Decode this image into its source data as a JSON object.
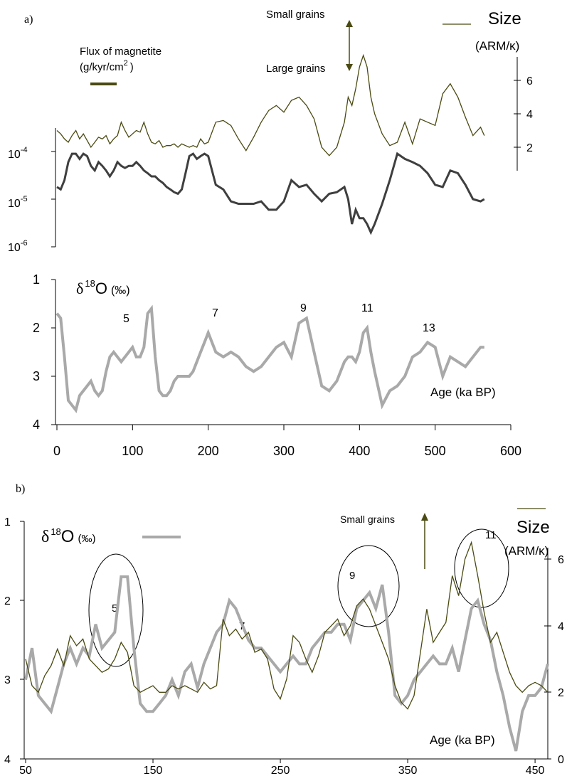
{
  "colors": {
    "size_line": "#4a4a12",
    "flux_line": "#3f3f3f",
    "d18o_line": "#a9a9a9",
    "arrow": "#4a4a12",
    "axis": "#000000"
  },
  "panel_a": {
    "label": "a)",
    "small_grains": "Small grains",
    "large_grains": "Large grains",
    "size_title": "Size",
    "size_unit": "(ARM/κ)",
    "flux_label_1": "Flux of magnetite",
    "flux_label_2": "(g/kyr/cm",
    "flux_label_sup": "2",
    "flux_label_close": ")",
    "d18o_delta": "δ",
    "d18o_sup": "18",
    "d18o_O": "O",
    "d18o_unit": "(‰)",
    "age_label": "Age (ka BP)",
    "stage_labels": [
      "5",
      "7",
      "9",
      "11",
      "13"
    ],
    "flux_tick_base": [
      "10",
      "10",
      "10"
    ],
    "flux_tick_exp": [
      "-4",
      "-5",
      "-6"
    ],
    "size_ticks": [
      "6",
      "4",
      "2"
    ],
    "d18o_ticks": [
      "1",
      "2",
      "3",
      "4"
    ],
    "x_ticks": [
      "0",
      "100",
      "200",
      "300",
      "400",
      "500",
      "600"
    ]
  },
  "panel_b": {
    "label": "b)",
    "small_grains": "Small grains",
    "size_title": "Size",
    "size_unit": "(ARM/κ)",
    "d18o_delta": "δ",
    "d18o_sup": "18",
    "d18o_O": "O",
    "d18o_unit": "(‰)",
    "age_label": "Age (ka BP)",
    "stage_labels": [
      "5",
      "7",
      "9",
      "11"
    ],
    "d18o_ticks": [
      "1",
      "2",
      "3",
      "4"
    ],
    "size_ticks": [
      "6",
      "4",
      "2",
      "0"
    ],
    "x_ticks": [
      "50",
      "150",
      "250",
      "350",
      "450"
    ]
  },
  "chart_data": [
    {
      "type": "line",
      "panel": "a",
      "xlabel": "Age (ka BP)",
      "xlim": [
        0,
        600
      ],
      "series": [
        {
          "axis": "flux",
          "yscale": "log",
          "ylim": [
            1e-06,
            0.0001
          ],
          "x": [
            0,
            5,
            10,
            15,
            20,
            25,
            30,
            35,
            40,
            45,
            50,
            55,
            60,
            65,
            70,
            75,
            80,
            85,
            90,
            95,
            100,
            105,
            110,
            115,
            120,
            125,
            130,
            135,
            140,
            145,
            150,
            155,
            160,
            165,
            170,
            175,
            180,
            185,
            190,
            195,
            200,
            210,
            220,
            230,
            240,
            250,
            260,
            270,
            280,
            290,
            300,
            310,
            320,
            330,
            340,
            350,
            360,
            370,
            380,
            385,
            390,
            395,
            400,
            405,
            410,
            415,
            420,
            430,
            440,
            450,
            460,
            470,
            480,
            490,
            500,
            510,
            520,
            530,
            540,
            550,
            560,
            565
          ],
          "y": [
            1.8e-05,
            1.6e-05,
            2.5e-05,
            6e-05,
            9e-05,
            9e-05,
            7e-05,
            9e-05,
            8e-05,
            5e-05,
            4e-05,
            6e-05,
            5e-05,
            4e-05,
            3e-05,
            4e-05,
            6e-05,
            5e-05,
            4.5e-05,
            5e-05,
            5e-05,
            6e-05,
            5e-05,
            4e-05,
            3.5e-05,
            3e-05,
            3e-05,
            2.5e-05,
            2.2e-05,
            1.8e-05,
            1.6e-05,
            1.4e-05,
            1.3e-05,
            1.6e-05,
            3.5e-05,
            8e-05,
            9e-05,
            7e-05,
            8e-05,
            9e-05,
            8e-05,
            2e-05,
            1.6e-05,
            9e-06,
            8e-06,
            8e-06,
            8e-06,
            9e-06,
            6e-06,
            6e-06,
            9e-06,
            2.5e-05,
            1.8e-05,
            2e-05,
            1.3e-05,
            9e-06,
            1.3e-05,
            1.4e-05,
            1.8e-05,
            1e-05,
            3e-06,
            6e-06,
            4e-06,
            4e-06,
            3e-06,
            2e-06,
            3e-06,
            8e-06,
            2.5e-05,
            9e-05,
            7e-05,
            6e-05,
            5e-05,
            3.5e-05,
            2e-05,
            1.8e-05,
            4e-05,
            3.5e-05,
            2e-05,
            1e-05,
            9e-06,
            1e-05
          ]
        },
        {
          "axis": "size",
          "ylim": [
            1,
            7
          ],
          "x": [
            0,
            5,
            10,
            15,
            20,
            25,
            30,
            35,
            40,
            45,
            50,
            55,
            60,
            65,
            70,
            75,
            80,
            85,
            90,
            95,
            100,
            105,
            110,
            115,
            120,
            125,
            130,
            135,
            140,
            145,
            150,
            155,
            160,
            165,
            170,
            175,
            180,
            185,
            190,
            195,
            200,
            210,
            220,
            230,
            240,
            250,
            260,
            270,
            280,
            290,
            300,
            310,
            320,
            330,
            340,
            350,
            360,
            370,
            380,
            385,
            390,
            395,
            400,
            405,
            410,
            415,
            420,
            430,
            440,
            450,
            460,
            470,
            480,
            490,
            500,
            510,
            520,
            530,
            540,
            550,
            560,
            565
          ],
          "y": [
            3.0,
            2.8,
            2.5,
            2.3,
            2.7,
            3.0,
            2.5,
            2.8,
            2.4,
            2.0,
            2.3,
            2.6,
            2.5,
            2.7,
            2.2,
            2.5,
            2.7,
            3.5,
            3.0,
            2.6,
            2.8,
            3.0,
            2.9,
            3.5,
            2.8,
            2.3,
            2.2,
            2.4,
            2.0,
            2.1,
            2.1,
            2.2,
            2.0,
            2.2,
            2.1,
            2.0,
            2.1,
            2.0,
            2.5,
            2.2,
            2.3,
            3.5,
            3.6,
            3.3,
            2.5,
            1.8,
            2.6,
            3.5,
            4.2,
            4.5,
            4.1,
            4.8,
            5.0,
            4.5,
            3.7,
            2.0,
            1.5,
            2.0,
            3.5,
            5.0,
            4.5,
            5.5,
            6.8,
            7.5,
            6.8,
            5.0,
            4.0,
            2.8,
            2.1,
            2.3,
            3.5,
            2.2,
            3.7,
            3.5,
            3.3,
            5.2,
            5.8,
            5.0,
            3.8,
            2.7,
            3.2,
            2.7
          ]
        },
        {
          "axis": "d18o",
          "ylim": [
            4,
            1
          ],
          "x": [
            0,
            5,
            10,
            15,
            20,
            25,
            30,
            35,
            40,
            45,
            50,
            55,
            60,
            65,
            70,
            75,
            80,
            85,
            90,
            95,
            100,
            105,
            110,
            115,
            120,
            125,
            130,
            135,
            140,
            145,
            150,
            155,
            160,
            165,
            170,
            175,
            180,
            185,
            190,
            195,
            200,
            210,
            220,
            230,
            240,
            250,
            260,
            270,
            280,
            290,
            300,
            310,
            320,
            330,
            340,
            350,
            360,
            370,
            380,
            385,
            390,
            395,
            400,
            405,
            410,
            415,
            420,
            430,
            440,
            450,
            460,
            470,
            480,
            490,
            500,
            510,
            520,
            530,
            540,
            550,
            560,
            565
          ],
          "y": [
            1.7,
            1.8,
            2.6,
            3.5,
            3.6,
            3.7,
            3.4,
            3.3,
            3.2,
            3.1,
            3.3,
            3.4,
            3.3,
            2.9,
            2.6,
            2.5,
            2.6,
            2.7,
            2.6,
            2.5,
            2.4,
            2.6,
            2.6,
            2.4,
            1.7,
            1.6,
            2.6,
            3.3,
            3.4,
            3.4,
            3.3,
            3.1,
            3.0,
            3.0,
            3.0,
            3.0,
            2.9,
            2.7,
            2.5,
            2.3,
            2.1,
            2.5,
            2.6,
            2.5,
            2.6,
            2.8,
            2.9,
            2.8,
            2.6,
            2.4,
            2.3,
            2.6,
            1.9,
            1.8,
            2.5,
            3.2,
            3.3,
            3.1,
            2.7,
            2.6,
            2.6,
            2.7,
            2.5,
            2.1,
            2.0,
            2.5,
            2.9,
            3.6,
            3.3,
            3.2,
            3.0,
            2.6,
            2.5,
            2.3,
            2.4,
            3.0,
            2.6,
            2.7,
            2.8,
            2.6,
            2.4,
            2.4
          ]
        }
      ]
    },
    {
      "type": "line",
      "panel": "b",
      "xlabel": "Age (ka BP)",
      "xlim": [
        50,
        460
      ],
      "series": [
        {
          "axis": "d18o",
          "ylim": [
            4,
            1
          ],
          "x": [
            50,
            55,
            60,
            65,
            70,
            75,
            80,
            85,
            90,
            95,
            100,
            105,
            110,
            115,
            120,
            125,
            130,
            135,
            140,
            145,
            150,
            155,
            160,
            165,
            170,
            175,
            180,
            185,
            190,
            195,
            200,
            205,
            210,
            215,
            220,
            225,
            230,
            235,
            240,
            245,
            250,
            255,
            260,
            265,
            270,
            275,
            280,
            285,
            290,
            295,
            300,
            305,
            310,
            315,
            320,
            325,
            330,
            335,
            340,
            345,
            350,
            355,
            360,
            365,
            370,
            375,
            380,
            385,
            390,
            395,
            400,
            405,
            410,
            415,
            420,
            425,
            430,
            435,
            440,
            445,
            450,
            455,
            460
          ],
          "y": [
            3.0,
            2.6,
            3.2,
            3.3,
            3.4,
            3.1,
            2.8,
            2.6,
            2.8,
            2.6,
            2.7,
            2.3,
            2.6,
            2.5,
            2.4,
            1.7,
            1.7,
            2.6,
            3.3,
            3.4,
            3.4,
            3.3,
            3.2,
            3.0,
            3.2,
            2.9,
            2.8,
            3.1,
            2.8,
            2.6,
            2.4,
            2.3,
            2.0,
            2.1,
            2.3,
            2.5,
            2.6,
            2.6,
            2.7,
            2.8,
            2.9,
            2.8,
            2.7,
            2.8,
            2.8,
            2.6,
            2.5,
            2.4,
            2.4,
            2.3,
            2.3,
            2.5,
            2.1,
            2.0,
            1.9,
            2.1,
            1.8,
            2.4,
            3.2,
            3.3,
            3.2,
            3.0,
            2.9,
            2.8,
            2.7,
            2.8,
            2.8,
            2.6,
            2.9,
            2.5,
            2.1,
            2.0,
            2.3,
            2.5,
            2.9,
            3.2,
            3.6,
            3.9,
            3.4,
            3.2,
            3.2,
            3.1,
            2.8
          ]
        },
        {
          "axis": "size",
          "ylim": [
            0,
            6.5
          ],
          "x": [
            50,
            55,
            60,
            65,
            70,
            75,
            80,
            85,
            90,
            95,
            100,
            105,
            110,
            115,
            120,
            125,
            130,
            135,
            140,
            145,
            150,
            155,
            160,
            165,
            170,
            175,
            180,
            185,
            190,
            195,
            200,
            205,
            210,
            215,
            220,
            225,
            230,
            235,
            240,
            245,
            250,
            255,
            260,
            265,
            270,
            275,
            280,
            285,
            290,
            295,
            300,
            305,
            310,
            315,
            320,
            325,
            330,
            335,
            340,
            345,
            350,
            355,
            360,
            365,
            370,
            375,
            380,
            385,
            390,
            395,
            400,
            405,
            410,
            415,
            420,
            425,
            430,
            435,
            440,
            445,
            450,
            455,
            460
          ],
          "y": [
            3.0,
            2.2,
            2.0,
            2.5,
            2.8,
            3.3,
            2.8,
            3.7,
            3.4,
            3.6,
            3.0,
            2.8,
            2.6,
            2.7,
            3.0,
            3.5,
            3.2,
            2.2,
            2.0,
            2.1,
            2.2,
            2.0,
            2.0,
            2.2,
            2.1,
            2.2,
            2.1,
            2.0,
            2.3,
            2.1,
            2.2,
            4.2,
            3.7,
            3.9,
            3.6,
            3.8,
            3.2,
            3.3,
            3.0,
            2.1,
            1.8,
            2.4,
            3.7,
            3.5,
            3.0,
            2.6,
            3.1,
            3.8,
            4.0,
            4.2,
            3.7,
            4.0,
            4.6,
            4.8,
            4.5,
            4.0,
            3.5,
            3.0,
            2.2,
            1.7,
            1.5,
            1.9,
            3.2,
            4.5,
            3.5,
            3.8,
            4.1,
            5.5,
            4.9,
            6.0,
            6.5,
            5.5,
            4.4,
            3.5,
            3.8,
            3.2,
            2.6,
            2.2,
            2.0,
            2.2,
            2.3,
            2.2,
            2.0
          ]
        }
      ]
    }
  ]
}
